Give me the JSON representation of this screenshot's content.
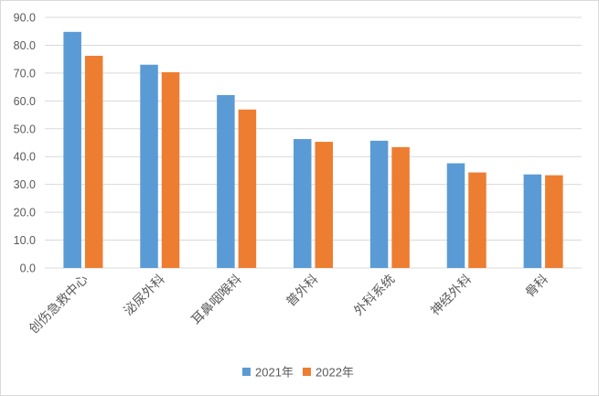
{
  "chart_data": {
    "type": "bar",
    "categories": [
      "创伤急救中心",
      "泌尿外科",
      "耳鼻咽喉科",
      "普外科",
      "外科系统",
      "神经外科",
      "骨科"
    ],
    "series": [
      {
        "name": "2021年",
        "color": "#5B9BD5",
        "values": [
          84.8,
          73.0,
          62.1,
          46.3,
          45.7,
          37.6,
          33.6
        ]
      },
      {
        "name": "2022年",
        "color": "#ED7D31",
        "values": [
          76.2,
          70.3,
          56.9,
          45.3,
          43.4,
          34.3,
          33.3
        ]
      }
    ],
    "ylim": [
      0,
      90
    ],
    "yticks": [
      "0.0",
      "10.0",
      "20.0",
      "30.0",
      "40.0",
      "50.0",
      "60.0",
      "70.0",
      "80.0",
      "90.0"
    ],
    "grid": true,
    "legend": "bottom-center",
    "colors": {
      "grid": "#D9D9D9",
      "text": "#595959",
      "border": "#D9D9D9"
    }
  }
}
